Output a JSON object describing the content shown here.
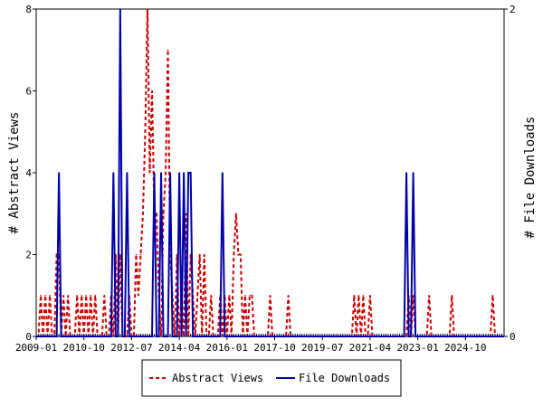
{
  "chart_data": {
    "type": "line",
    "title": "",
    "ylabel_left": "# Abstract Views",
    "ylabel_right": "# File Downloads",
    "xlabel": "",
    "x_tick_labels": [
      "2009-01",
      "2010-10",
      "2012-07",
      "2014-04",
      "2016-01",
      "2017-10",
      "2019-07",
      "2021-04",
      "2023-01",
      "2024-10"
    ],
    "y_left_ticks": [
      "0",
      "2",
      "4",
      "6",
      "8"
    ],
    "y_right_ticks": [
      "0",
      "2"
    ],
    "y_left_range": [
      0,
      8
    ],
    "y_right_range": [
      0,
      2
    ],
    "x_range": [
      "2009-01",
      "2026-03"
    ],
    "grid": false,
    "legend_position": "bottom",
    "series": [
      {
        "name": "Abstract Views",
        "axis": "left",
        "color": "#cc0000",
        "style": "dashed",
        "points": [
          [
            "2009-03",
            1
          ],
          [
            "2009-05",
            1
          ],
          [
            "2009-07",
            1
          ],
          [
            "2009-10",
            2
          ],
          [
            "2009-11",
            2
          ],
          [
            "2010-01",
            1
          ],
          [
            "2010-03",
            1
          ],
          [
            "2010-07",
            1
          ],
          [
            "2010-09",
            1
          ],
          [
            "2010-11",
            1
          ],
          [
            "2011-01",
            1
          ],
          [
            "2011-03",
            1
          ],
          [
            "2011-07",
            1
          ],
          [
            "2011-10",
            1
          ],
          [
            "2011-12",
            2
          ],
          [
            "2012-02",
            2
          ],
          [
            "2012-06",
            1
          ],
          [
            "2012-09",
            2
          ],
          [
            "2012-10",
            1
          ],
          [
            "2012-11",
            2
          ],
          [
            "2012-12",
            3
          ],
          [
            "2013-01",
            5
          ],
          [
            "2013-02",
            8
          ],
          [
            "2013-03",
            4
          ],
          [
            "2013-04",
            6
          ],
          [
            "2013-05",
            3
          ],
          [
            "2013-06",
            3
          ],
          [
            "2013-07",
            1
          ],
          [
            "2013-09",
            3
          ],
          [
            "2013-10",
            4
          ],
          [
            "2013-11",
            7
          ],
          [
            "2013-12",
            2
          ],
          [
            "2014-01",
            1
          ],
          [
            "2014-03",
            2
          ],
          [
            "2014-05",
            1
          ],
          [
            "2014-07",
            3
          ],
          [
            "2014-09",
            2
          ],
          [
            "2014-10",
            1
          ],
          [
            "2014-12",
            1
          ],
          [
            "2015-01",
            2
          ],
          [
            "2015-03",
            2
          ],
          [
            "2015-06",
            1
          ],
          [
            "2015-10",
            1
          ],
          [
            "2015-12",
            1
          ],
          [
            "2016-02",
            1
          ],
          [
            "2016-04",
            2
          ],
          [
            "2016-05",
            3
          ],
          [
            "2016-06",
            2
          ],
          [
            "2016-07",
            2
          ],
          [
            "2016-09",
            1
          ],
          [
            "2016-11",
            1
          ],
          [
            "2016-12",
            1
          ],
          [
            "2017-08",
            1
          ],
          [
            "2018-04",
            1
          ],
          [
            "2020-09",
            1
          ],
          [
            "2020-11",
            1
          ],
          [
            "2021-01",
            1
          ],
          [
            "2021-04",
            1
          ],
          [
            "2022-09",
            1
          ],
          [
            "2022-11",
            1
          ],
          [
            "2023-06",
            1
          ],
          [
            "2024-04",
            1
          ],
          [
            "2025-10",
            1
          ]
        ]
      },
      {
        "name": "File Downloads",
        "axis": "right",
        "color": "#0000aa",
        "style": "solid",
        "points": [
          [
            "2009-11",
            1
          ],
          [
            "2011-11",
            1
          ],
          [
            "2012-02",
            2
          ],
          [
            "2012-05",
            1
          ],
          [
            "2013-05",
            1
          ],
          [
            "2013-08",
            1
          ],
          [
            "2013-12",
            1
          ],
          [
            "2014-04",
            1
          ],
          [
            "2014-06",
            1
          ],
          [
            "2014-08",
            1
          ],
          [
            "2014-09",
            1
          ],
          [
            "2015-11",
            1
          ],
          [
            "2022-08",
            1
          ],
          [
            "2022-11",
            1
          ]
        ]
      }
    ]
  }
}
